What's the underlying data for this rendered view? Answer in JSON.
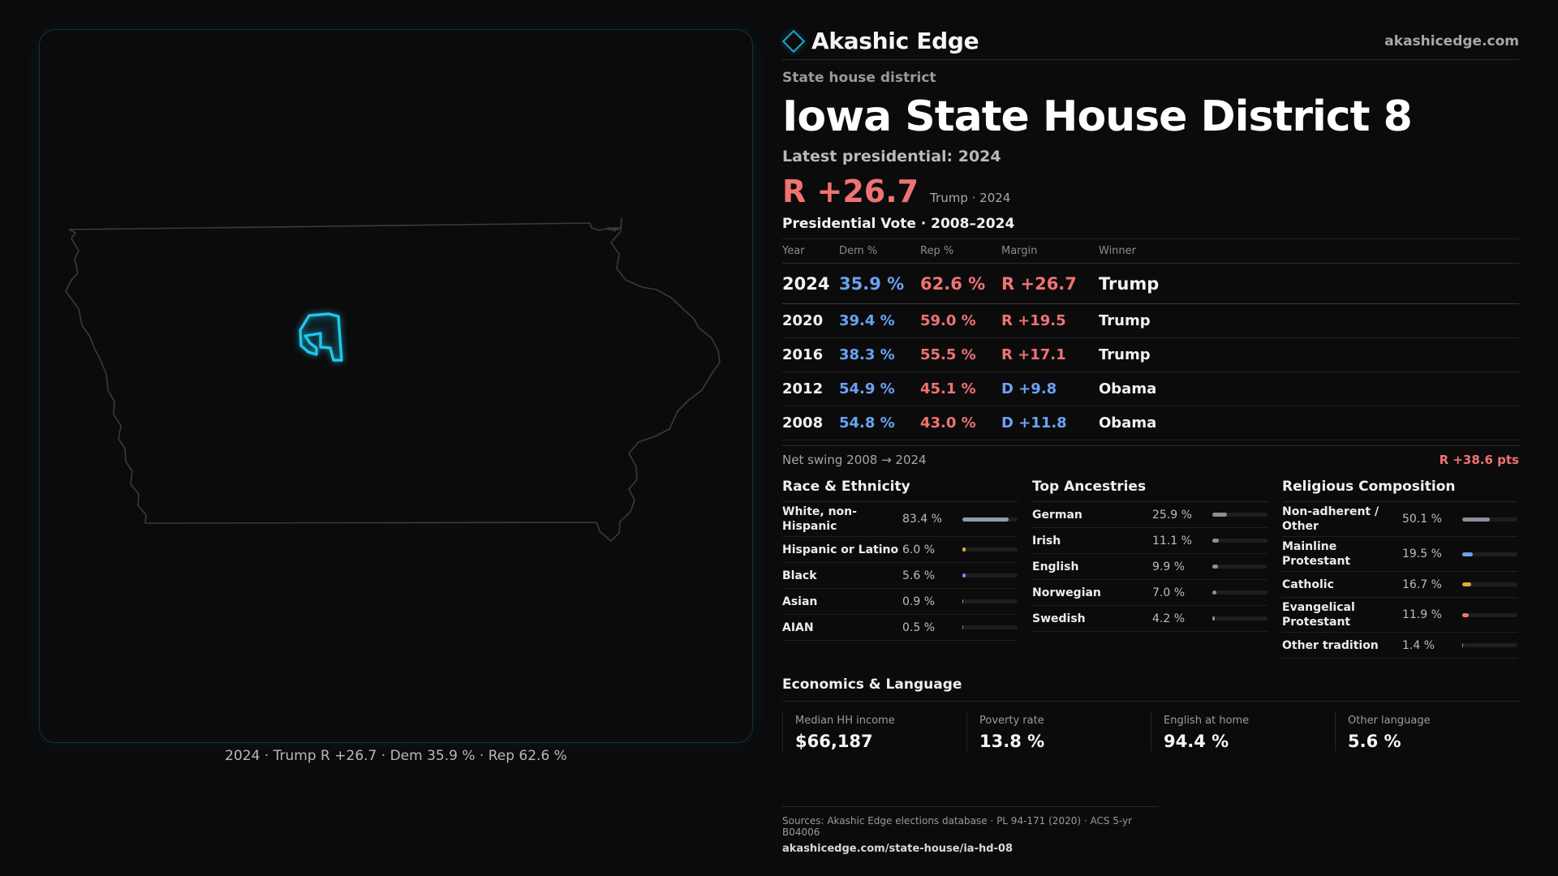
{
  "brand": {
    "name": "Akashic Edge",
    "url": "akashicedge.com",
    "icon": "diamond-icon"
  },
  "kicker": "State house district",
  "title": "Iowa State House District 8",
  "latest_label": "Latest presidential: 2024",
  "headline_margin": "R +26.7",
  "headline_sub": "Trump · 2024",
  "presidential_title": "Presidential Vote · 2008–2024",
  "table": {
    "headers": [
      "Year",
      "Dem %",
      "Rep %",
      "Margin",
      "Winner"
    ],
    "rows": [
      {
        "year": "2024",
        "dem": "35.9 %",
        "rep": "62.6 %",
        "margin": "R +26.7",
        "winner": "Trump"
      },
      {
        "year": "2020",
        "dem": "39.4 %",
        "rep": "59.0 %",
        "margin": "R +19.5",
        "winner": "Trump"
      },
      {
        "year": "2016",
        "dem": "38.3 %",
        "rep": "55.5 %",
        "margin": "R +17.1",
        "winner": "Trump"
      },
      {
        "year": "2012",
        "dem": "54.9 %",
        "rep": "45.1 %",
        "margin": "D +9.8",
        "winner": "Obama"
      },
      {
        "year": "2008",
        "dem": "54.8 %",
        "rep": "43.0 %",
        "margin": "D +11.8",
        "winner": "Obama"
      }
    ]
  },
  "swing": {
    "label": "Net swing 2008 → 2024",
    "value": "R +38.6 pts"
  },
  "race": {
    "title": "Race & Ethnicity",
    "items": [
      {
        "label": "White, non-Hispanic",
        "value": "83.4 %",
        "share": 0.834,
        "color": "#8e9bb0"
      },
      {
        "label": "Hispanic or Latino",
        "value": "6.0 %",
        "share": 0.06,
        "color": "#e0a82e"
      },
      {
        "label": "Black",
        "value": "5.6 %",
        "share": 0.056,
        "color": "#8b7cf0"
      },
      {
        "label": "Asian",
        "value": "0.9 %",
        "share": 0.009,
        "color": "#3fb27f"
      },
      {
        "label": "AIAN",
        "value": "0.5 %",
        "share": 0.005,
        "color": "#7a7a7a"
      }
    ]
  },
  "ancestry": {
    "title": "Top Ancestries",
    "items": [
      {
        "label": "German",
        "value": "25.9 %",
        "share": 0.259,
        "color": "#8a8f99"
      },
      {
        "label": "Irish",
        "value": "11.1 %",
        "share": 0.111,
        "color": "#8a8f99"
      },
      {
        "label": "English",
        "value": "9.9 %",
        "share": 0.099,
        "color": "#8a8f99"
      },
      {
        "label": "Norwegian",
        "value": "7.0 %",
        "share": 0.07,
        "color": "#8a8f99"
      },
      {
        "label": "Swedish",
        "value": "4.2 %",
        "share": 0.042,
        "color": "#8a8f99"
      }
    ]
  },
  "religion": {
    "title": "Religious Composition",
    "items": [
      {
        "label": "Non-adherent / Other",
        "value": "50.1 %",
        "share": 0.501,
        "color": "#8a8f99"
      },
      {
        "label": "Mainline Protestant",
        "value": "19.5 %",
        "share": 0.195,
        "color": "#6aa2f5"
      },
      {
        "label": "Catholic",
        "value": "16.7 %",
        "share": 0.167,
        "color": "#e0a82e"
      },
      {
        "label": "Evangelical Protestant",
        "value": "11.9 %",
        "share": 0.119,
        "color": "#f07272"
      },
      {
        "label": "Other tradition",
        "value": "1.4 %",
        "share": 0.014,
        "color": "#8a8f99"
      }
    ]
  },
  "economics": {
    "title": "Economics & Language",
    "items": [
      {
        "label": "Median HH income",
        "value": "$66,187"
      },
      {
        "label": "Poverty rate",
        "value": "13.8 %"
      },
      {
        "label": "English at home",
        "value": "94.4 %"
      },
      {
        "label": "Other language",
        "value": "5.6 %"
      }
    ]
  },
  "map_caption": "2024 · Trump R +26.7 · Dem 35.9 % · Rep 62.6 %",
  "sources": {
    "line": "Sources: Akashic Edge elections database · PL 94-171 (2020) · ACS 5-yr B04006",
    "url": "akashicedge.com/state-house/ia-hd-08"
  },
  "colors": {
    "rep": "#f07272",
    "dem": "#6aa2f5",
    "accent": "#1ec8ec"
  }
}
